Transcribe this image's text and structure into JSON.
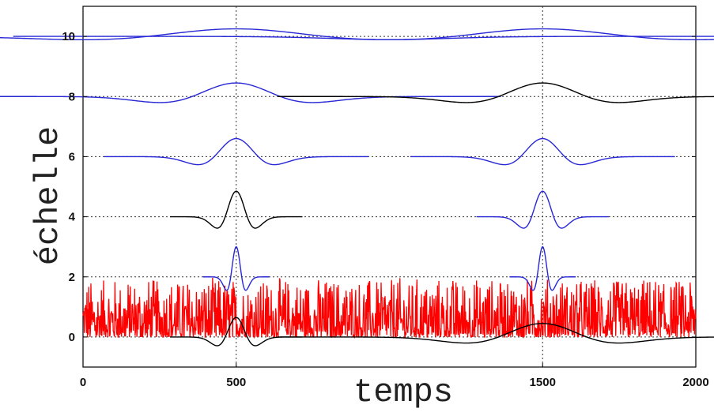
{
  "chart_data": {
    "type": "line",
    "title": "",
    "xlabel": "temps",
    "ylabel": "échelle",
    "xlim": [
      0,
      2000
    ],
    "ylim": [
      -1,
      11
    ],
    "xticks": [
      0,
      500,
      1500,
      2000
    ],
    "yticks": [
      0,
      2,
      4,
      6,
      8,
      10
    ],
    "grid": true,
    "grid_style": "dotted",
    "colors": {
      "noise": "#ff0000",
      "blue": "#2727d6",
      "black": "#000000"
    },
    "series": [
      {
        "kind": "noise",
        "baseline": 0,
        "mean_amplitude": 0.45,
        "max_amplitude": 1.9,
        "x_range": [
          0,
          2000
        ],
        "color": "noise"
      },
      {
        "kind": "wavelet",
        "center": 500,
        "level": 10,
        "scale": 10,
        "amplitude": 0.25,
        "color": "blue"
      },
      {
        "kind": "wavelet",
        "center": 1500,
        "level": 10,
        "scale": 10,
        "amplitude": 0.25,
        "color": "blue"
      },
      {
        "kind": "wavelet",
        "center": 500,
        "level": 8,
        "scale": 8,
        "amplitude": 0.45,
        "color": "blue"
      },
      {
        "kind": "wavelet",
        "center": 1500,
        "level": 8,
        "scale": 8,
        "amplitude": 0.45,
        "color": "black"
      },
      {
        "kind": "wavelet",
        "center": 500,
        "level": 6,
        "scale": 6,
        "amplitude": 0.6,
        "color": "blue"
      },
      {
        "kind": "wavelet",
        "center": 1500,
        "level": 6,
        "scale": 6,
        "amplitude": 0.6,
        "color": "blue"
      },
      {
        "kind": "wavelet",
        "center": 500,
        "level": 4,
        "scale": 4,
        "amplitude": 0.85,
        "color": "black"
      },
      {
        "kind": "wavelet",
        "center": 1500,
        "level": 4,
        "scale": 4,
        "amplitude": 0.85,
        "color": "blue"
      },
      {
        "kind": "wavelet",
        "center": 500,
        "level": 2,
        "scale": 2,
        "amplitude": 1.0,
        "color": "blue"
      },
      {
        "kind": "wavelet",
        "center": 1500,
        "level": 2,
        "scale": 2,
        "amplitude": 1.0,
        "color": "blue"
      },
      {
        "kind": "wavelet",
        "center": 500,
        "level": 0,
        "scale": 4,
        "amplitude": 0.65,
        "color": "black"
      },
      {
        "kind": "wavelet",
        "center": 1500,
        "level": 0,
        "scale": 8,
        "amplitude": 0.45,
        "color": "black"
      }
    ]
  }
}
